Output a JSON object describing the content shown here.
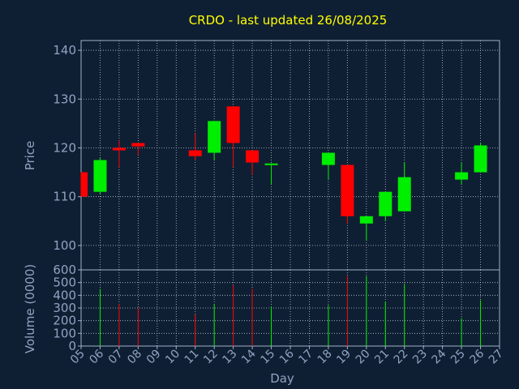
{
  "chart_data": {
    "type": "candlestick",
    "title": "CRDO - last updated 26/08/2025",
    "xlabel": "Day",
    "ylabel_price": "Price",
    "ylabel_volume": "Volume (0000)",
    "price_ylim": [
      95,
      142
    ],
    "price_ticks": [
      100,
      110,
      120,
      130,
      140
    ],
    "volume_ylim": [
      0,
      600
    ],
    "volume_ticks": [
      0,
      100,
      200,
      300,
      400,
      500,
      600
    ],
    "grid": true,
    "x_ticks": [
      "05",
      "06",
      "07",
      "08",
      "09",
      "10",
      "11",
      "12",
      "13",
      "14",
      "15",
      "16",
      "17",
      "18",
      "19",
      "20",
      "21",
      "22",
      "23",
      "24",
      "25",
      "26",
      "27"
    ],
    "colors": {
      "background": "#0f1f33",
      "axis": "#9fb0c4",
      "grid": "#b9c4d0",
      "title": "#ffff00",
      "label": "#8fa3c2",
      "up": "#00ee00",
      "down": "#ff0000"
    },
    "candles": [
      {
        "day": "05",
        "open": 115.0,
        "high": 115.0,
        "low": 110.0,
        "close": 110.0,
        "volume": 0
      },
      {
        "day": "06",
        "open": 111.0,
        "high": 118.0,
        "low": 110.5,
        "close": 117.5,
        "volume": 450
      },
      {
        "day": "07",
        "open": 120.0,
        "high": 121.5,
        "low": 116.0,
        "close": 119.5,
        "volume": 330
      },
      {
        "day": "08",
        "open": 121.0,
        "high": 121.0,
        "low": 118.5,
        "close": 120.3,
        "volume": 300
      },
      {
        "day": "11",
        "open": 119.5,
        "high": 123.0,
        "low": 117.5,
        "close": 118.3,
        "volume": 250
      },
      {
        "day": "12",
        "open": 119.0,
        "high": 125.5,
        "low": 117.5,
        "close": 125.5,
        "volume": 330
      },
      {
        "day": "13",
        "open": 128.5,
        "high": 128.5,
        "low": 116.0,
        "close": 121.0,
        "volume": 480
      },
      {
        "day": "14",
        "open": 119.5,
        "high": 119.5,
        "low": 114.5,
        "close": 117.0,
        "volume": 450
      },
      {
        "day": "15",
        "open": 116.5,
        "high": 116.8,
        "low": 112.5,
        "close": 116.8,
        "volume": 310
      },
      {
        "day": "18",
        "open": 116.5,
        "high": 119.0,
        "low": 113.5,
        "close": 119.0,
        "volume": 320
      },
      {
        "day": "19",
        "open": 116.5,
        "high": 116.5,
        "low": 104.5,
        "close": 106.0,
        "volume": 550
      },
      {
        "day": "20",
        "open": 104.5,
        "high": 106.0,
        "low": 101.0,
        "close": 106.0,
        "volume": 550
      },
      {
        "day": "21",
        "open": 106.0,
        "high": 111.0,
        "low": 105.0,
        "close": 111.0,
        "volume": 350
      },
      {
        "day": "22",
        "open": 107.0,
        "high": 117.0,
        "low": 107.0,
        "close": 114.0,
        "volume": 490
      },
      {
        "day": "25",
        "open": 113.5,
        "high": 117.0,
        "low": 112.5,
        "close": 115.0,
        "volume": 220
      },
      {
        "day": "26",
        "open": 115.0,
        "high": 121.0,
        "low": 115.0,
        "close": 120.5,
        "volume": 360
      }
    ]
  }
}
